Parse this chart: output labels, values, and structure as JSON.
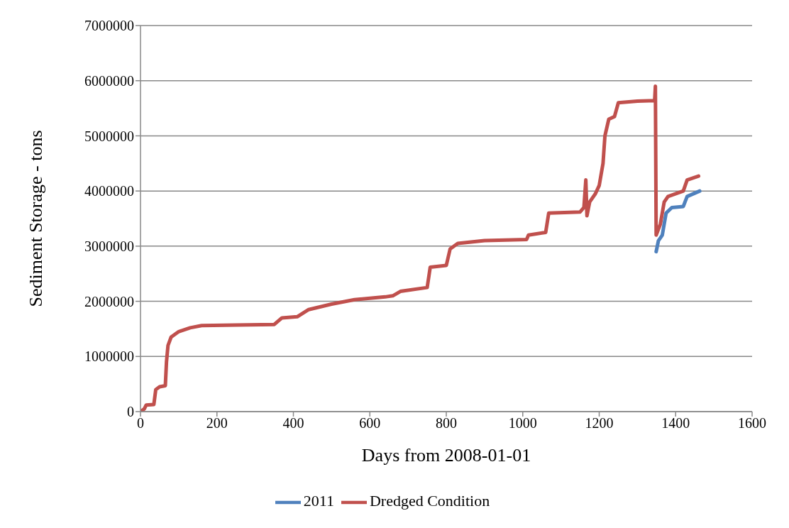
{
  "chart_data": {
    "type": "line",
    "xlabel": "Days from 2008-01-01",
    "ylabel": "Sediment Storage - tons",
    "xlim": [
      0,
      1600
    ],
    "xticks": [
      0,
      200,
      400,
      600,
      800,
      1000,
      1200,
      1400,
      1600
    ],
    "ylim": [
      0,
      7000000
    ],
    "yticks": [
      0,
      1000000,
      2000000,
      3000000,
      4000000,
      5000000,
      6000000,
      7000000
    ],
    "grid": "y",
    "legend": "bottom",
    "marker": "none",
    "line_style": "solid",
    "series": [
      {
        "name": "2011",
        "color": "#4f81bd",
        "x": [
          1349,
          1355,
          1365,
          1375,
          1390,
          1420,
          1430,
          1463
        ],
        "values": [
          2900000,
          3100000,
          3200000,
          3600000,
          3700000,
          3720000,
          3900000,
          4000000
        ]
      },
      {
        "name": "Dredged Condition",
        "color": "#c0504d",
        "x": [
          0,
          10,
          15,
          35,
          40,
          50,
          65,
          68,
          72,
          80,
          100,
          130,
          160,
          250,
          350,
          370,
          410,
          440,
          500,
          560,
          640,
          660,
          680,
          750,
          758,
          800,
          810,
          830,
          900,
          1010,
          1015,
          1060,
          1068,
          1150,
          1160,
          1165,
          1168,
          1175,
          1190,
          1200,
          1210,
          1215,
          1225,
          1240,
          1250,
          1300,
          1345,
          1347,
          1349,
          1360,
          1370,
          1380,
          1420,
          1430,
          1460
        ],
        "values": [
          0,
          50000,
          120000,
          130000,
          400000,
          450000,
          470000,
          900000,
          1200000,
          1350000,
          1450000,
          1520000,
          1560000,
          1570000,
          1580000,
          1700000,
          1720000,
          1850000,
          1950000,
          2030000,
          2080000,
          2100000,
          2180000,
          2250000,
          2620000,
          2650000,
          2950000,
          3050000,
          3100000,
          3120000,
          3200000,
          3250000,
          3600000,
          3620000,
          3700000,
          4200000,
          3550000,
          3800000,
          3950000,
          4100000,
          4500000,
          5000000,
          5300000,
          5350000,
          5600000,
          5630000,
          5640000,
          5900000,
          3200000,
          3400000,
          3800000,
          3900000,
          4000000,
          4200000,
          4270000
        ]
      }
    ]
  }
}
